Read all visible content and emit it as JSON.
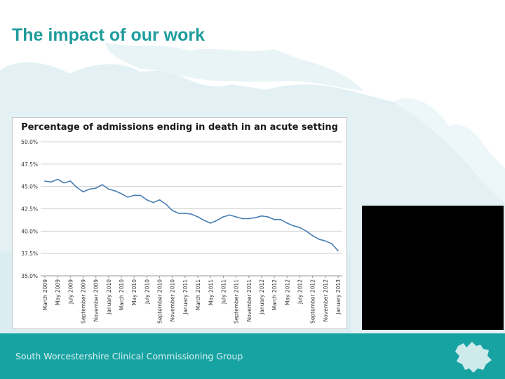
{
  "slide": {
    "title": "The impact of our work",
    "footer": "South Worcestershire Clinical Commissioning Group"
  },
  "colors": {
    "accent": "#1f9c9c",
    "footer_bg": "#18a3a3",
    "map_tint": "#e3f1f4",
    "line": "#4a7fb5"
  },
  "icons": {
    "footer_logo": "county-map-icon"
  },
  "chart_data": {
    "type": "line",
    "title": "Percentage of admissions ending in death in an acute setting",
    "xlabel": "",
    "ylabel": "",
    "ylim": [
      35.0,
      50.0
    ],
    "yticks": [
      "35.0%",
      "37.5%",
      "40.0%",
      "42.5%",
      "45.0%",
      "47.5%",
      "50.0%"
    ],
    "x": [
      "March 2009",
      "April 2009",
      "May 2009",
      "June 2009",
      "July 2009",
      "August 2009",
      "September 2009",
      "October 2009",
      "November 2009",
      "December 2009",
      "January 2010",
      "February 2010",
      "March 2010",
      "April 2010",
      "May 2010",
      "June 2010",
      "July 2010",
      "August 2010",
      "September 2010",
      "October 2010",
      "November 2010",
      "December 2010",
      "January 2011",
      "February 2011",
      "March 2011",
      "April 2011",
      "May 2011",
      "June 2011",
      "July 2011",
      "August 2011",
      "September 2011",
      "October 2011",
      "November 2011",
      "December 2011",
      "January 2012",
      "February 2012",
      "March 2012",
      "April 2012",
      "May 2012",
      "June 2012",
      "July 2012",
      "August 2012",
      "September 2012",
      "October 2012",
      "November 2012",
      "December 2012",
      "January 2013"
    ],
    "xtick_labels": [
      "March 2009",
      "May 2009",
      "July 2009",
      "September 2009",
      "November 2009",
      "January 2010",
      "March 2010",
      "May 2010",
      "July 2010",
      "September 2010",
      "November 2010",
      "January 2011",
      "March 2011",
      "May 2011",
      "July 2011",
      "September 2011",
      "November 2011",
      "January 2012",
      "March 2012",
      "May 2012",
      "July 2012",
      "September 2012",
      "November 2012",
      "January 2013"
    ],
    "series": [
      {
        "values": [
          45.6,
          45.5,
          45.8,
          45.4,
          45.6,
          44.9,
          44.4,
          44.7,
          44.8,
          45.2,
          44.7,
          44.5,
          44.2,
          43.8,
          44.0,
          44.0,
          43.5,
          43.2,
          43.5,
          43.0,
          42.3,
          42.0,
          42.0,
          41.9,
          41.6,
          41.2,
          40.9,
          41.2,
          41.6,
          41.8,
          41.6,
          41.4,
          41.4,
          41.5,
          41.7,
          41.6,
          41.3,
          41.3,
          40.9,
          40.6,
          40.4,
          40.0,
          39.5,
          39.1,
          38.9,
          38.6,
          37.8
        ]
      }
    ],
    "grid": true,
    "legend": "none"
  }
}
